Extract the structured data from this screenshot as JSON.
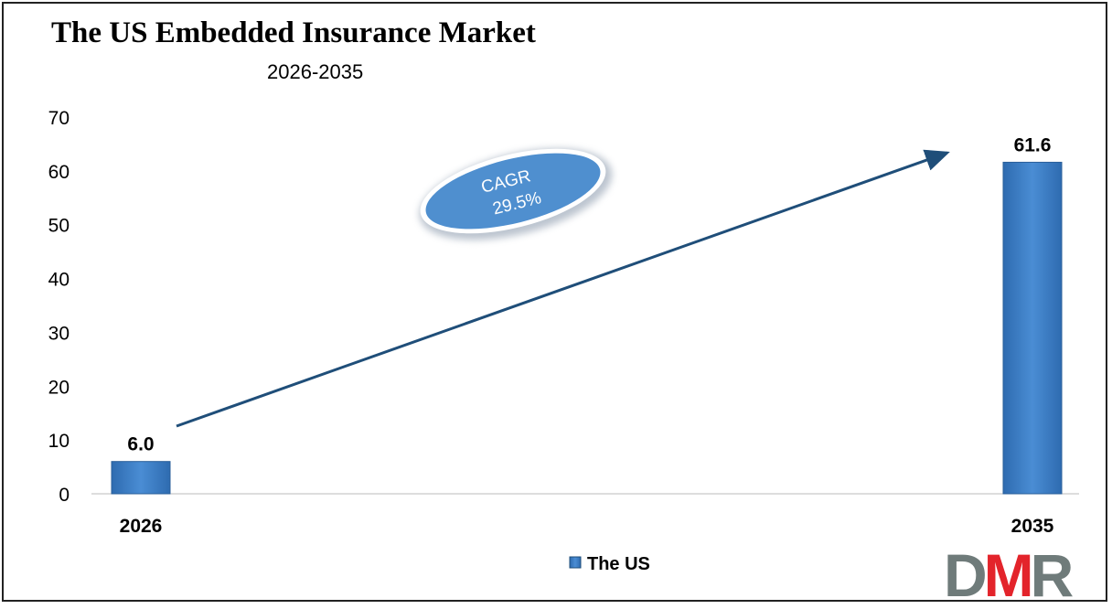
{
  "title": "The US Embedded Insurance Market",
  "subtitle": "2026-2035",
  "chart_data": {
    "type": "bar",
    "categories": [
      "2026",
      "2035"
    ],
    "series": [
      {
        "name": "The US",
        "values": [
          6.0,
          61.6
        ],
        "labels": [
          "6.0",
          "61.6"
        ]
      }
    ],
    "ylim": [
      0,
      70
    ],
    "yticks": [
      "0",
      "10",
      "20",
      "30",
      "40",
      "50",
      "60",
      "70"
    ],
    "grid": false,
    "legend": "bottom",
    "bar_color": "#3B7CC2",
    "annotation": {
      "line1": "CAGR",
      "line2": "29.5%"
    }
  },
  "logo": {
    "text_d": "D",
    "text_m": "M",
    "text_r": "R",
    "colors": {
      "grey": "#6F7B7A",
      "red": "#E3242B"
    }
  }
}
